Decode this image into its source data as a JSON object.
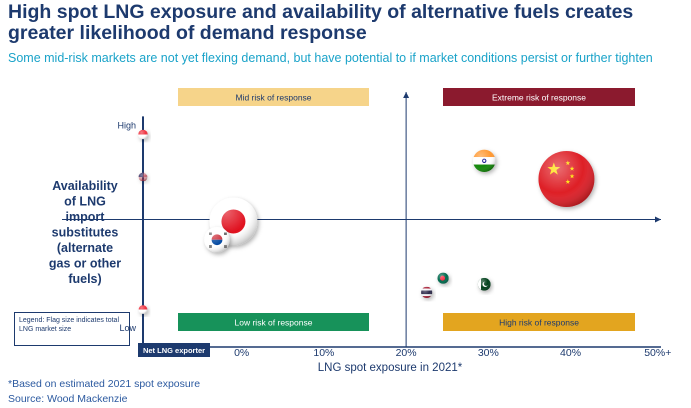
{
  "title": "High spot LNG exposure and availability of alternative fuels creates greater likelihood of demand response",
  "subtitle": "Some mid-risk markets are not yet flexing demand, but have potential to if market conditions persist or further tighten",
  "legend_note": "Legend: Flag size indicates total LNG market size",
  "footnote": "*Based on estimated 2021 spot exposure",
  "source": "Source: Wood Mackenzie",
  "colors": {
    "navy": "#1d3a6e",
    "mid_risk": "#f6d48a",
    "extreme_risk": "#8b1a2e",
    "low_risk": "#17925a",
    "high_risk": "#e3a51f",
    "net_exporter": "#1d3a6e"
  },
  "chart_data": {
    "type": "scatter",
    "title": "",
    "xlabel": "LNG spot exposure in 2021*",
    "ylabel": "Availability of LNG import substitutes (alternate gas or other fuels)",
    "x_ticks": [
      "0%",
      "10%",
      "20%",
      "30%",
      "40%",
      "50%+"
    ],
    "x_tick_values": [
      0,
      10,
      20,
      30,
      40,
      50
    ],
    "xlim": [
      -12,
      51
    ],
    "y_ticks": [
      "High",
      "Low"
    ],
    "y_tick_values": [
      1,
      0
    ],
    "ylim": [
      -0.1,
      1.16
    ],
    "net_exporter_label": "Net LNG exporter",
    "quadrants": [
      {
        "label": "Mid risk of response",
        "color_key": "mid_risk"
      },
      {
        "label": "Extreme risk of response",
        "color_key": "extreme_risk"
      },
      {
        "label": "Low risk of response",
        "color_key": "low_risk"
      },
      {
        "label": "High risk of response",
        "color_key": "high_risk"
      }
    ],
    "points": [
      {
        "flag": "japan-flag",
        "x": -1,
        "y": 0.52,
        "size": 3.0
      },
      {
        "flag": "china-flag",
        "x": 39.5,
        "y": 0.73,
        "size": 3.5
      },
      {
        "flag": "south-korea-flag",
        "x": -3,
        "y": 0.43,
        "size": 1.6
      },
      {
        "flag": "india-flag",
        "x": 29.5,
        "y": 0.82,
        "size": 1.4
      },
      {
        "flag": "pakistan-flag",
        "x": 29.5,
        "y": 0.21,
        "size": 0.8
      },
      {
        "flag": "bangladesh-flag",
        "x": 24.5,
        "y": 0.24,
        "size": 0.7
      },
      {
        "flag": "thailand-flag",
        "x": 22.5,
        "y": 0.17,
        "size": 0.7
      },
      {
        "flag": "singapore-flag",
        "x": -12,
        "y": 0.085,
        "size": 0.55
      },
      {
        "flag": "usa-flag",
        "x": -12,
        "y": 0.74,
        "size": 0.55
      },
      {
        "flag": "singapore-flag",
        "x": -12,
        "y": 0.95,
        "size": 0.6
      }
    ]
  }
}
